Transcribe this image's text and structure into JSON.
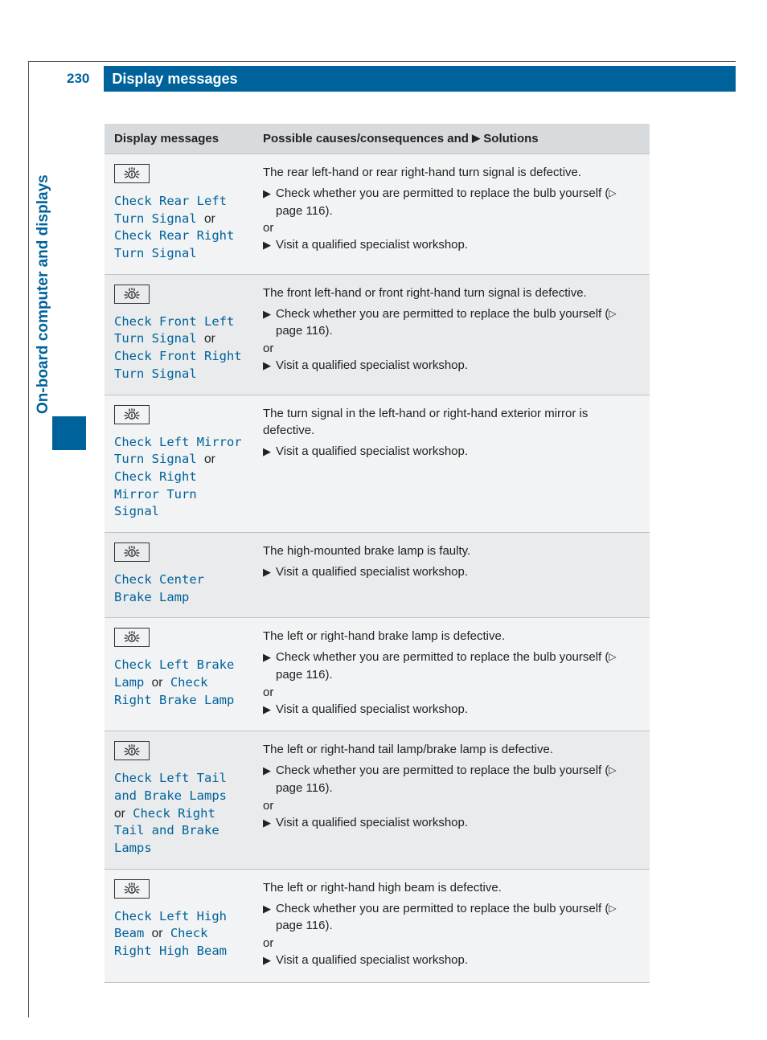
{
  "page_number": "230",
  "page_title": "Display messages",
  "side_tab": "On-board computer and displays",
  "colors": {
    "brand": "#00629b",
    "row_light": "#f2f3f4",
    "row_dark": "#e9ebec",
    "header_bg": "#d8dbdd",
    "text": "#222222"
  },
  "table": {
    "header_col1": "Display messages",
    "header_col2_a": "Possible causes/consequences and ",
    "header_col2_b": " Solutions",
    "page_ref": "page 116",
    "or_word": "or",
    "rows": [
      {
        "msg_a": "Check Rear Left Turn Signal",
        "msg_b": "Check Rear Right Turn Signal",
        "cause": "The rear left-hand or rear right-hand turn signal is defective.",
        "sol1": "Check whether you are permitted to replace the bulb yourself (",
        "sol1_tail": ").",
        "has_or": true,
        "sol2": "Visit a qualified specialist workshop."
      },
      {
        "msg_a": "Check Front Left Turn Signal",
        "msg_b": "Check Front Right Turn Signal",
        "cause": "The front left-hand or front right-hand turn signal is defective.",
        "sol1": "Check whether you are permitted to replace the bulb yourself (",
        "sol1_tail": ").",
        "has_or": true,
        "sol2": "Visit a qualified specialist workshop."
      },
      {
        "msg_a": "Check Left Mirror Turn Signal",
        "msg_b": "Check Right Mirror Turn Signal",
        "cause": "The turn signal in the left-hand or right-hand exterior mirror is defective.",
        "sol1": "Visit a qualified specialist workshop.",
        "sol1_tail": "",
        "has_or": false,
        "sol2": ""
      },
      {
        "msg_a": "Check Center Brake Lamp",
        "msg_b": "",
        "cause": "The high-mounted brake lamp is faulty.",
        "sol1": "Visit a qualified specialist workshop.",
        "sol1_tail": "",
        "has_or": false,
        "sol2": ""
      },
      {
        "msg_a": "Check Left Brake Lamp",
        "msg_b": "Check Right Brake Lamp",
        "cause": "The left or right-hand brake lamp is defective.",
        "sol1": "Check whether you are permitted to replace the bulb yourself (",
        "sol1_tail": ").",
        "has_or": true,
        "sol2": "Visit a qualified specialist workshop."
      },
      {
        "msg_a": "Check Left Tail and Brake Lamps",
        "msg_b": "Check Right Tail and Brake Lamps",
        "cause": "The left or right-hand tail lamp/brake lamp is defective.",
        "sol1": "Check whether you are permitted to replace the bulb yourself (",
        "sol1_tail": ").",
        "has_or": true,
        "sol2": "Visit a qualified specialist workshop."
      },
      {
        "msg_a": "Check Left High Beam",
        "msg_b": "Check Right High Beam",
        "cause": "The left or right-hand high beam is defective.",
        "sol1": "Check whether you are permitted to replace the bulb yourself (",
        "sol1_tail": ").",
        "has_or": true,
        "sol2": "Visit a qualified specialist workshop."
      }
    ]
  }
}
